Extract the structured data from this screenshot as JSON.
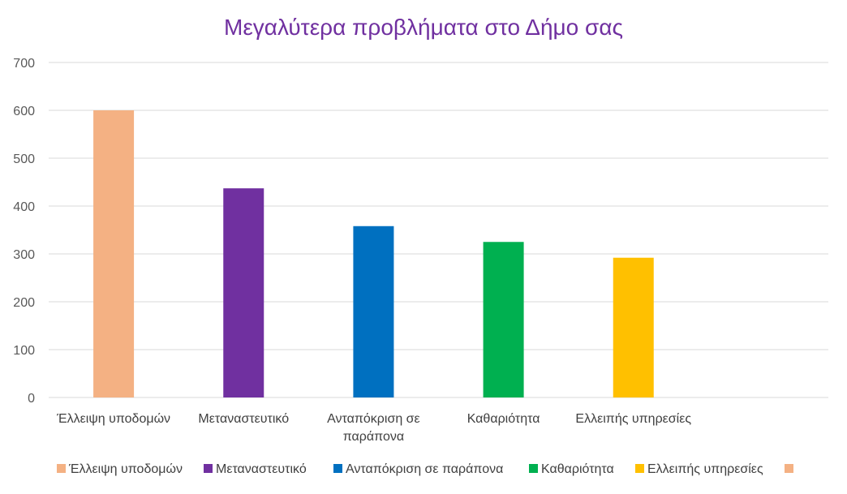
{
  "chart_data": {
    "type": "bar",
    "title": "Μεγαλύτερα προβλήματα στο Δήμο σας",
    "categories": [
      "Έλλειψη υποδομών",
      "Μεταναστευτικό",
      "Ανταπόκριση σε παράπονα",
      "Καθαριότητα",
      "Ελλειπής υπηρεσίες",
      ""
    ],
    "category_label_lines": [
      [
        "Έλλειψη υποδομών"
      ],
      [
        "Μεταναστευτικό"
      ],
      [
        "Ανταπόκριση σε",
        "παράπονα"
      ],
      [
        "Καθαριότητα"
      ],
      [
        "Ελλειπής υπηρεσίες"
      ],
      [
        ""
      ]
    ],
    "values": [
      600,
      437,
      358,
      325,
      292,
      null
    ],
    "colors": [
      "#f4b183",
      "#7030a0",
      "#0070c0",
      "#00b050",
      "#ffc000",
      "#f4b183"
    ],
    "ylim": [
      0,
      700
    ],
    "yticks": [
      0,
      100,
      200,
      300,
      400,
      500,
      600,
      700
    ],
    "grid": true,
    "legend_position": "bottom",
    "legend": [
      "Έλλειψη υποδομών",
      "Μεταναστευτικό",
      "Ανταπόκριση σε παράπονα",
      "Καθαριότητα",
      "Ελλειπής υπηρεσίες",
      ""
    ]
  }
}
